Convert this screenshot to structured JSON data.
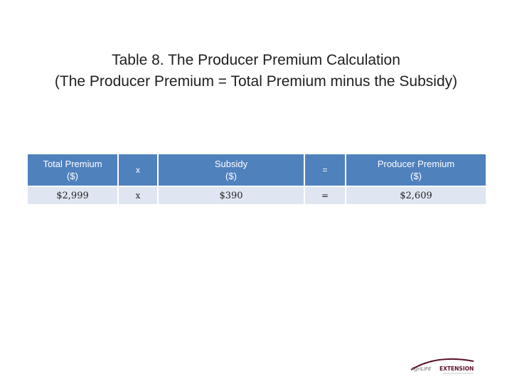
{
  "title": {
    "line1": "Table 8. The Producer Premium Calculation",
    "line2": "(The Producer Premium = Total Premium minus the Subsidy)"
  },
  "table": {
    "header": {
      "col1_line1": "Total Premium",
      "col1_line2": "($)",
      "col2": "x",
      "col3_line1": "Subsidy",
      "col3_line2": "($)",
      "col4": "=",
      "col5_line1": "Producer Premium",
      "col5_line2": "($)"
    },
    "row": {
      "total_premium": "$2,999",
      "op1": "x",
      "subsidy": "$390",
      "op2": "=",
      "producer_premium": "$2,609"
    }
  },
  "logo": {
    "text_left": "AgriLIFE",
    "text_right": "EXTENSION",
    "accent_color": "#5b0f2a"
  },
  "colors": {
    "header_fill": "#4f81bd",
    "row_fill": "#dfe6f1"
  }
}
